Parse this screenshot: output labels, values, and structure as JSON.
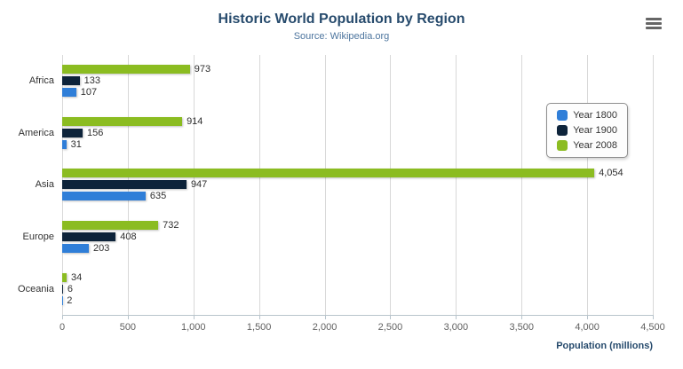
{
  "chart_data": {
    "type": "bar",
    "orientation": "horizontal",
    "title": "Historic World Population by Region",
    "subtitle": "Source: Wikipedia.org",
    "categories": [
      "Africa",
      "America",
      "Asia",
      "Europe",
      "Oceania"
    ],
    "series": [
      {
        "name": "Year 1800",
        "color": "#2f7ed8",
        "values": [
          107,
          31,
          635,
          203,
          2
        ]
      },
      {
        "name": "Year 1900",
        "color": "#0d233a",
        "values": [
          133,
          156,
          947,
          408,
          6
        ]
      },
      {
        "name": "Year 2008",
        "color": "#8bbc21",
        "values": [
          973,
          914,
          4054,
          732,
          34
        ]
      }
    ],
    "xlabel": "Population (millions)",
    "ylabel": "",
    "xlim": [
      0,
      4500
    ],
    "xticks": [
      0,
      500,
      1000,
      1500,
      2000,
      2500,
      3000,
      3500,
      4000,
      4500
    ],
    "grid": true,
    "legend_position": "right",
    "icons": {
      "export_menu": "hamburger-icon"
    }
  }
}
